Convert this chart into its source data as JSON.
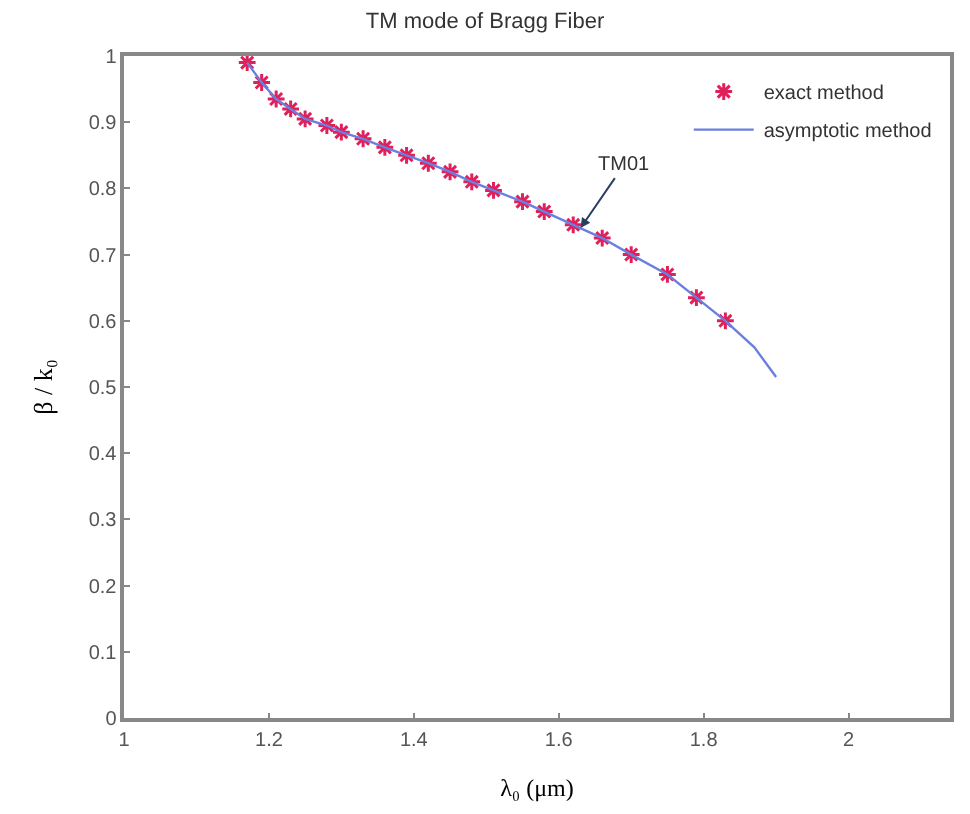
{
  "chart_data": {
    "type": "line",
    "title": "TM mode of Bragg Fiber",
    "xlabel": "λ₀ (μm)",
    "ylabel": "β / k₀",
    "xlim": [
      1,
      2.14
    ],
    "xticks": [
      1,
      1.2,
      1.4,
      1.6,
      1.8,
      2
    ],
    "ylim": [
      0,
      1
    ],
    "yticks": [
      0,
      0.1,
      0.2,
      0.3,
      0.4,
      0.5,
      0.6,
      0.7,
      0.8,
      0.9,
      1
    ],
    "grid": false,
    "legend": "top right",
    "annotations": [
      {
        "text": "TM01",
        "x": 1.63,
        "y": 0.74
      }
    ],
    "series": [
      {
        "name": "exact method",
        "type": "scatter",
        "marker": "cross",
        "color": "#e0205a",
        "x": [
          1.17,
          1.19,
          1.21,
          1.23,
          1.25,
          1.28,
          1.3,
          1.33,
          1.36,
          1.39,
          1.42,
          1.45,
          1.48,
          1.51,
          1.55,
          1.58,
          1.62,
          1.66,
          1.7,
          1.75,
          1.79,
          1.83
        ],
        "values": [
          0.99,
          0.96,
          0.935,
          0.92,
          0.905,
          0.895,
          0.885,
          0.875,
          0.862,
          0.85,
          0.838,
          0.825,
          0.81,
          0.797,
          0.78,
          0.765,
          0.745,
          0.725,
          0.7,
          0.67,
          0.635,
          0.6
        ]
      },
      {
        "name": "asymptotic method",
        "line_style": "solid",
        "color": "#6a7fe0",
        "x": [
          1.17,
          1.19,
          1.21,
          1.23,
          1.25,
          1.28,
          1.3,
          1.33,
          1.36,
          1.39,
          1.42,
          1.45,
          1.48,
          1.51,
          1.55,
          1.58,
          1.62,
          1.66,
          1.7,
          1.75,
          1.79,
          1.83,
          1.87,
          1.9
        ],
        "values": [
          0.99,
          0.96,
          0.935,
          0.92,
          0.905,
          0.895,
          0.885,
          0.875,
          0.862,
          0.85,
          0.838,
          0.825,
          0.81,
          0.797,
          0.78,
          0.765,
          0.745,
          0.725,
          0.7,
          0.67,
          0.635,
          0.6,
          0.56,
          0.515
        ]
      }
    ]
  }
}
